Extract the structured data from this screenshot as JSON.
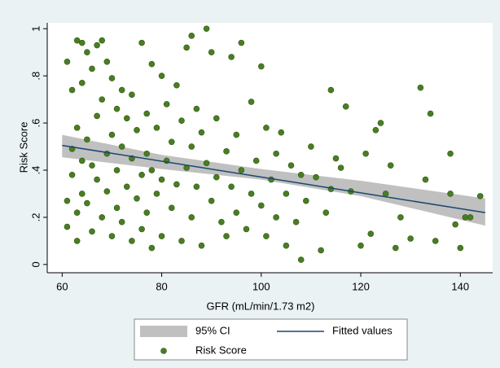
{
  "chart_data": {
    "type": "scatter",
    "xlabel": "GFR (mL/min/1.73 m2)",
    "ylabel": "Risk Score",
    "xlim": [
      57,
      146.5
    ],
    "ylim": [
      -0.035,
      1.025
    ],
    "xticks": [
      60,
      80,
      100,
      120,
      140
    ],
    "yticks": [
      0,
      {
        "value": 0.2,
        "label": ".2"
      },
      {
        "value": 0.4,
        "label": ".4"
      },
      {
        "value": 0.6,
        "label": ".6"
      },
      {
        "value": 0.8,
        "label": ".8"
      },
      1
    ],
    "series": [
      {
        "name": "95% CI",
        "type": "band",
        "color": "#c0c0c0",
        "x": [
          60,
          80,
          100,
          120,
          145
        ],
        "upper": [
          0.55,
          0.465,
          0.405,
          0.355,
          0.28
        ],
        "lower": [
          0.455,
          0.405,
          0.36,
          0.29,
          0.165
        ]
      },
      {
        "name": "Fitted values",
        "type": "line",
        "color": "#1a476f",
        "x": [
          60,
          145
        ],
        "values": [
          0.505,
          0.22
        ]
      },
      {
        "name": "Risk Score",
        "type": "scatter",
        "color": "#4a7d22",
        "x": [
          61,
          61,
          61,
          62,
          62,
          62,
          63,
          63,
          63,
          63,
          64,
          64,
          64,
          64,
          65,
          65,
          65,
          66,
          66,
          66,
          67,
          67,
          67,
          68,
          68,
          68,
          69,
          69,
          69,
          70,
          70,
          70,
          71,
          71,
          71,
          72,
          72,
          72,
          73,
          73,
          74,
          74,
          74,
          75,
          75,
          76,
          76,
          76,
          77,
          77,
          77,
          78,
          78,
          78,
          79,
          79,
          80,
          80,
          80,
          81,
          81,
          82,
          82,
          83,
          83,
          84,
          84,
          85,
          85,
          86,
          86,
          86,
          87,
          87,
          88,
          88,
          89,
          89,
          90,
          90,
          91,
          91,
          92,
          93,
          93,
          94,
          94,
          95,
          95,
          96,
          96,
          97,
          98,
          98,
          99,
          100,
          100,
          101,
          101,
          102,
          103,
          103,
          104,
          105,
          105,
          106,
          107,
          108,
          108,
          109,
          110,
          111,
          112,
          113,
          114,
          114,
          115,
          116,
          117,
          118,
          120,
          121,
          122,
          123,
          124,
          125,
          126,
          127,
          128,
          130,
          132,
          133,
          134,
          135,
          138,
          138,
          139,
          140,
          141,
          142,
          144
        ],
        "values": [
          0.86,
          0.27,
          0.16,
          0.74,
          0.49,
          0.38,
          0.95,
          0.58,
          0.22,
          0.1,
          0.94,
          0.77,
          0.44,
          0.3,
          0.9,
          0.53,
          0.26,
          0.83,
          0.42,
          0.14,
          0.93,
          0.63,
          0.36,
          0.95,
          0.7,
          0.2,
          0.86,
          0.47,
          0.31,
          0.79,
          0.55,
          0.12,
          0.66,
          0.4,
          0.24,
          0.74,
          0.5,
          0.18,
          0.62,
          0.33,
          0.72,
          0.45,
          0.1,
          0.57,
          0.28,
          0.94,
          0.38,
          0.15,
          0.64,
          0.47,
          0.22,
          0.85,
          0.4,
          0.07,
          0.58,
          0.3,
          0.8,
          0.36,
          0.12,
          0.68,
          0.44,
          0.52,
          0.24,
          0.76,
          0.34,
          0.61,
          0.1,
          0.92,
          0.41,
          0.97,
          0.5,
          0.2,
          0.66,
          0.33,
          0.56,
          0.08,
          1.0,
          0.43,
          0.9,
          0.27,
          0.62,
          0.37,
          0.18,
          0.48,
          0.12,
          0.88,
          0.33,
          0.55,
          0.22,
          0.94,
          0.4,
          0.15,
          0.69,
          0.3,
          0.44,
          0.84,
          0.25,
          0.58,
          0.12,
          0.36,
          0.47,
          0.2,
          0.56,
          0.3,
          0.08,
          0.42,
          0.18,
          0.38,
          0.02,
          0.27,
          0.5,
          0.37,
          0.06,
          0.22,
          0.74,
          0.32,
          0.45,
          0.41,
          0.67,
          0.31,
          0.08,
          0.47,
          0.13,
          0.57,
          0.6,
          0.3,
          0.42,
          0.07,
          0.2,
          0.11,
          0.75,
          0.36,
          0.64,
          0.1,
          0.47,
          0.3,
          0.17,
          0.07,
          0.2,
          0.2,
          0.29
        ]
      }
    ]
  }
}
